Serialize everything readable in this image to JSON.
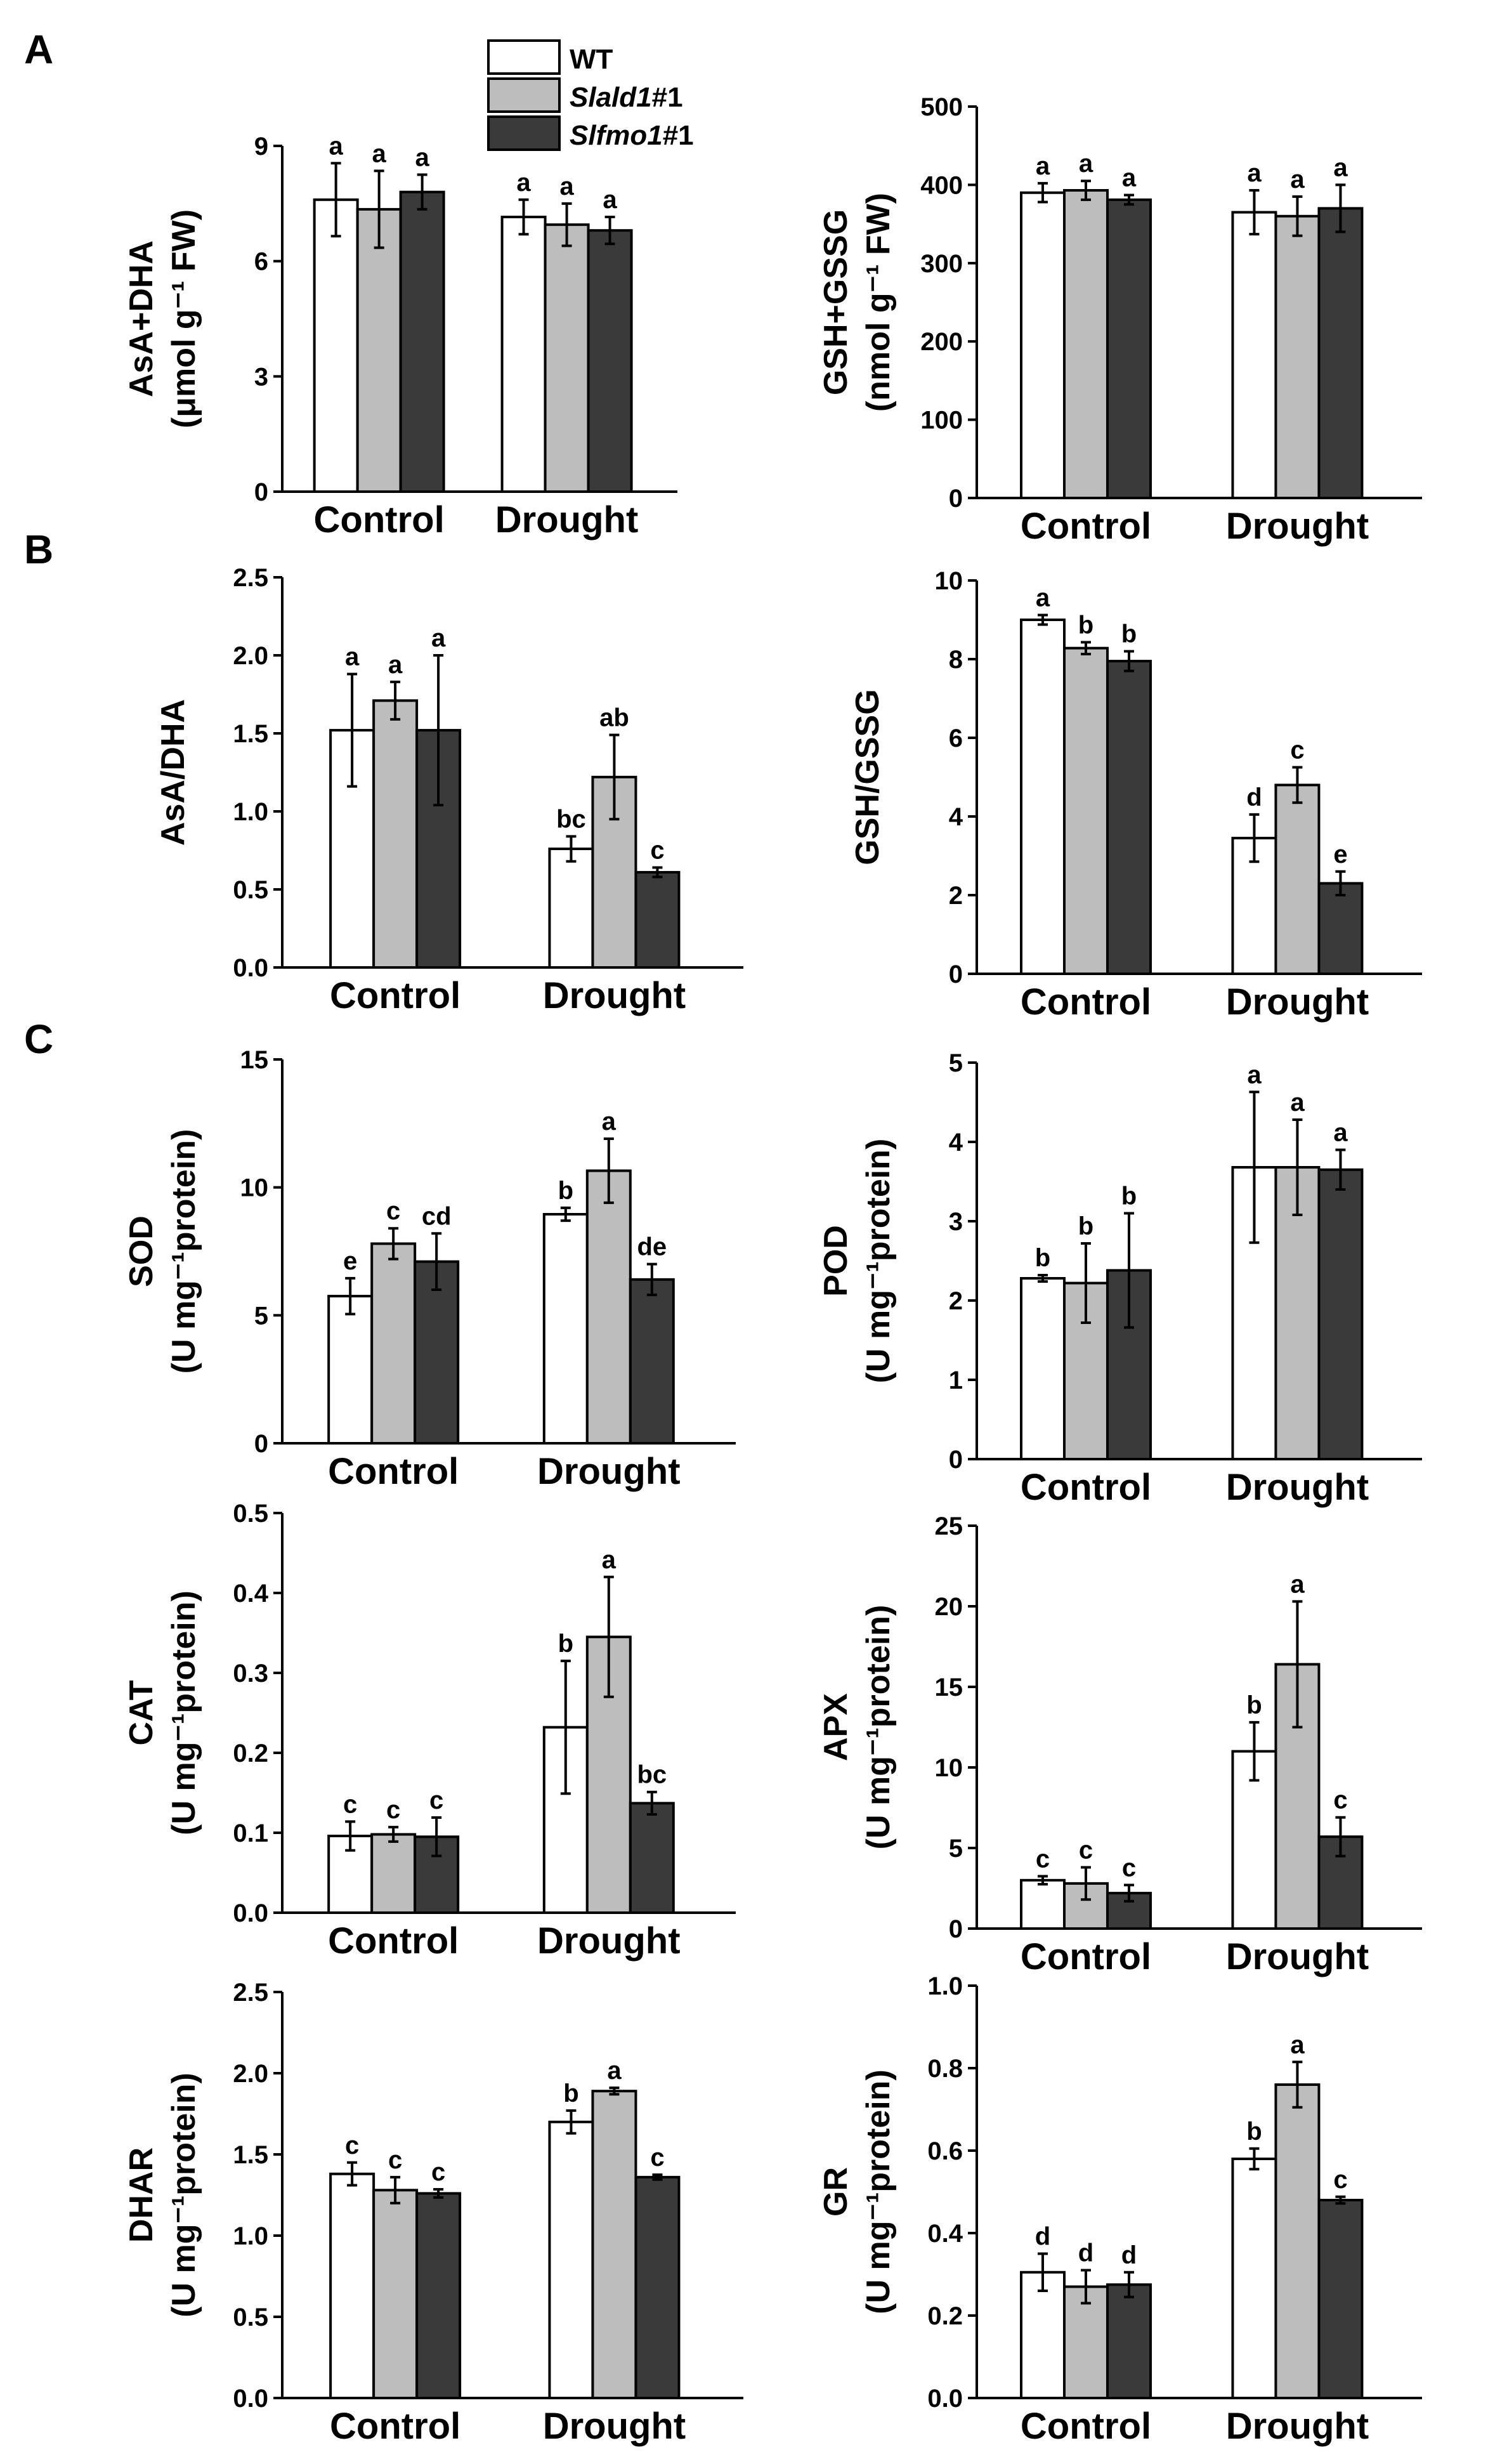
{
  "panel_labels": [
    "A",
    "B",
    "C"
  ],
  "legend": [
    {
      "label": "WT",
      "italic": "",
      "suffix": ""
    },
    {
      "label": "",
      "italic": "Slald1",
      "suffix": "#1"
    },
    {
      "label": "",
      "italic": "Slfmo1",
      "suffix": "#1"
    }
  ],
  "colors": {
    "WT": "#ffffff",
    "Slald1#1": "#bdbdbd",
    "Slfmo1#1": "#3a3a3a"
  },
  "chart_data": [
    {
      "id": "asa_dha_total",
      "type": "bar",
      "categories": [
        "Control",
        "Drought"
      ],
      "ylabel_line1": "AsA+DHA",
      "ylabel_line2": "(μmol g⁻¹ FW)",
      "ylim": [
        0,
        9
      ],
      "yticks": [
        "0",
        "3",
        "6",
        "9"
      ],
      "ytick_values": [
        0,
        3,
        6,
        9
      ],
      "series": [
        {
          "name": "WT",
          "values": [
            7.6,
            7.15
          ],
          "errors": [
            0.95,
            0.45
          ],
          "sig": [
            "a",
            "a"
          ]
        },
        {
          "name": "Slald1#1",
          "values": [
            7.35,
            6.95
          ],
          "errors": [
            1.0,
            0.55
          ],
          "sig": [
            "a",
            "a"
          ]
        },
        {
          "name": "Slfmo1#1",
          "values": [
            7.8,
            6.8
          ],
          "errors": [
            0.45,
            0.35
          ],
          "sig": [
            "a",
            "a"
          ]
        }
      ]
    },
    {
      "id": "gsh_gssg_total",
      "type": "bar",
      "categories": [
        "Control",
        "Drought"
      ],
      "ylabel_line1": "GSH+GSSG",
      "ylabel_line2": "(nmol g⁻¹ FW)",
      "ylim": [
        0,
        500
      ],
      "yticks": [
        "0",
        "100",
        "200",
        "300",
        "400",
        "500"
      ],
      "ytick_values": [
        0,
        100,
        200,
        300,
        400,
        500
      ],
      "series": [
        {
          "name": "WT",
          "values": [
            390,
            365
          ],
          "errors": [
            12,
            28
          ],
          "sig": [
            "a",
            "a"
          ]
        },
        {
          "name": "Slald1#1",
          "values": [
            393,
            360
          ],
          "errors": [
            12,
            25
          ],
          "sig": [
            "a",
            "a"
          ]
        },
        {
          "name": "Slfmo1#1",
          "values": [
            381,
            370
          ],
          "errors": [
            6,
            30
          ],
          "sig": [
            "a",
            "a"
          ]
        }
      ]
    },
    {
      "id": "asa_dha_ratio",
      "type": "bar",
      "categories": [
        "Control",
        "Drought"
      ],
      "ylabel_line1": "AsA/DHA",
      "ylabel_line2": "",
      "ylim": [
        0,
        2.5
      ],
      "yticks": [
        "0.0",
        "0.5",
        "1.0",
        "1.5",
        "2.0",
        "2.5"
      ],
      "ytick_values": [
        0,
        0.5,
        1.0,
        1.5,
        2.0,
        2.5
      ],
      "series": [
        {
          "name": "WT",
          "values": [
            1.52,
            0.76
          ],
          "errors": [
            0.36,
            0.08
          ],
          "sig": [
            "a",
            "bc"
          ]
        },
        {
          "name": "Slald1#1",
          "values": [
            1.71,
            1.22
          ],
          "errors": [
            0.12,
            0.27
          ],
          "sig": [
            "a",
            "ab"
          ]
        },
        {
          "name": "Slfmo1#1",
          "values": [
            1.52,
            0.61
          ],
          "errors": [
            0.48,
            0.03
          ],
          "sig": [
            "a",
            "c"
          ]
        }
      ]
    },
    {
      "id": "gsh_gssg_ratio",
      "type": "bar",
      "categories": [
        "Control",
        "Drought"
      ],
      "ylabel_line1": "GSH/GSSG",
      "ylabel_line2": "",
      "ylim": [
        0,
        10
      ],
      "yticks": [
        "0",
        "2",
        "4",
        "6",
        "8",
        "10"
      ],
      "ytick_values": [
        0,
        2,
        4,
        6,
        8,
        10
      ],
      "series": [
        {
          "name": "WT",
          "values": [
            9.0,
            3.45
          ],
          "errors": [
            0.12,
            0.6
          ],
          "sig": [
            "a",
            "d"
          ]
        },
        {
          "name": "Slald1#1",
          "values": [
            8.28,
            4.8
          ],
          "errors": [
            0.15,
            0.45
          ],
          "sig": [
            "b",
            "c"
          ]
        },
        {
          "name": "Slfmo1#1",
          "values": [
            7.95,
            2.3
          ],
          "errors": [
            0.25,
            0.3
          ],
          "sig": [
            "b",
            "e"
          ]
        }
      ]
    },
    {
      "id": "sod",
      "type": "bar",
      "categories": [
        "Control",
        "Drought"
      ],
      "ylabel_line1": "SOD",
      "ylabel_line2": "(U mg⁻¹protein)",
      "ylim": [
        0,
        15
      ],
      "yticks": [
        "0",
        "5",
        "10",
        "15"
      ],
      "ytick_values": [
        0,
        5,
        10,
        15
      ],
      "series": [
        {
          "name": "WT",
          "values": [
            5.75,
            8.95
          ],
          "errors": [
            0.7,
            0.25
          ],
          "sig": [
            "e",
            "b"
          ]
        },
        {
          "name": "Slald1#1",
          "values": [
            7.8,
            10.65
          ],
          "errors": [
            0.6,
            1.25
          ],
          "sig": [
            "c",
            "a"
          ]
        },
        {
          "name": "Slfmo1#1",
          "values": [
            7.1,
            6.4
          ],
          "errors": [
            1.1,
            0.6
          ],
          "sig": [
            "cd",
            "de"
          ]
        }
      ]
    },
    {
      "id": "pod",
      "type": "bar",
      "categories": [
        "Control",
        "Drought"
      ],
      "ylabel_line1": "POD",
      "ylabel_line2": "(U mg⁻¹protein)",
      "ylim": [
        0,
        5
      ],
      "yticks": [
        "0",
        "1",
        "2",
        "3",
        "4",
        "5"
      ],
      "ytick_values": [
        0,
        1,
        2,
        3,
        4,
        5
      ],
      "series": [
        {
          "name": "WT",
          "values": [
            2.28,
            3.68
          ],
          "errors": [
            0.04,
            0.95
          ],
          "sig": [
            "b",
            "a"
          ]
        },
        {
          "name": "Slald1#1",
          "values": [
            2.22,
            3.68
          ],
          "errors": [
            0.5,
            0.6
          ],
          "sig": [
            "b",
            "a"
          ]
        },
        {
          "name": "Slfmo1#1",
          "values": [
            2.38,
            3.65
          ],
          "errors": [
            0.72,
            0.25
          ],
          "sig": [
            "b",
            "a"
          ]
        }
      ]
    },
    {
      "id": "cat",
      "type": "bar",
      "categories": [
        "Control",
        "Drought"
      ],
      "ylabel_line1": "CAT",
      "ylabel_line2": "(U mg⁻¹protein)",
      "ylim": [
        0,
        0.5
      ],
      "yticks": [
        "0.0",
        "0.1",
        "0.2",
        "0.3",
        "0.4",
        "0.5"
      ],
      "ytick_values": [
        0,
        0.1,
        0.2,
        0.3,
        0.4,
        0.5
      ],
      "series": [
        {
          "name": "WT",
          "values": [
            0.096,
            0.232
          ],
          "errors": [
            0.018,
            0.083
          ],
          "sig": [
            "c",
            "b"
          ]
        },
        {
          "name": "Slald1#1",
          "values": [
            0.098,
            0.345
          ],
          "errors": [
            0.009,
            0.075
          ],
          "sig": [
            "c",
            "a"
          ]
        },
        {
          "name": "Slfmo1#1",
          "values": [
            0.095,
            0.137
          ],
          "errors": [
            0.024,
            0.014
          ],
          "sig": [
            "c",
            "bc"
          ]
        }
      ]
    },
    {
      "id": "apx",
      "type": "bar",
      "categories": [
        "Control",
        "Drought"
      ],
      "ylabel_line1": "APX",
      "ylabel_line2": "(U mg⁻¹protein)",
      "ylim": [
        0,
        25
      ],
      "yticks": [
        "0",
        "5",
        "10",
        "15",
        "20",
        "25"
      ],
      "ytick_values": [
        0,
        5,
        10,
        15,
        20,
        25
      ],
      "series": [
        {
          "name": "WT",
          "values": [
            3.0,
            11.0
          ],
          "errors": [
            0.25,
            1.8
          ],
          "sig": [
            "c",
            "b"
          ]
        },
        {
          "name": "Slald1#1",
          "values": [
            2.8,
            16.4
          ],
          "errors": [
            1.0,
            3.9
          ],
          "sig": [
            "c",
            "a"
          ]
        },
        {
          "name": "Slfmo1#1",
          "values": [
            2.2,
            5.7
          ],
          "errors": [
            0.5,
            1.2
          ],
          "sig": [
            "c",
            "c"
          ]
        }
      ]
    },
    {
      "id": "dhar",
      "type": "bar",
      "categories": [
        "Control",
        "Drought"
      ],
      "ylabel_line1": "DHAR",
      "ylabel_line2": "(U mg⁻¹protein)",
      "ylim": [
        0,
        2.5
      ],
      "yticks": [
        "0.0",
        "0.5",
        "1.0",
        "1.5",
        "2.0",
        "2.5"
      ],
      "ytick_values": [
        0,
        0.5,
        1.0,
        1.5,
        2.0,
        2.5
      ],
      "series": [
        {
          "name": "WT",
          "values": [
            1.38,
            1.7
          ],
          "errors": [
            0.07,
            0.07
          ],
          "sig": [
            "c",
            "b"
          ]
        },
        {
          "name": "Slald1#1",
          "values": [
            1.28,
            1.89
          ],
          "errors": [
            0.08,
            0.02
          ],
          "sig": [
            "c",
            "a"
          ]
        },
        {
          "name": "Slfmo1#1",
          "values": [
            1.26,
            1.36
          ],
          "errors": [
            0.025,
            0.015
          ],
          "sig": [
            "c",
            "c"
          ]
        }
      ]
    },
    {
      "id": "gr",
      "type": "bar",
      "categories": [
        "Control",
        "Drought"
      ],
      "ylabel_line1": "GR",
      "ylabel_line2": "(U mg⁻¹protein)",
      "ylim": [
        0,
        1.0
      ],
      "yticks": [
        "0.0",
        "0.2",
        "0.4",
        "0.6",
        "0.8",
        "1.0"
      ],
      "ytick_values": [
        0,
        0.2,
        0.4,
        0.6,
        0.8,
        1.0
      ],
      "series": [
        {
          "name": "WT",
          "values": [
            0.305,
            0.58
          ],
          "errors": [
            0.045,
            0.025
          ],
          "sig": [
            "d",
            "b"
          ]
        },
        {
          "name": "Slald1#1",
          "values": [
            0.27,
            0.76
          ],
          "errors": [
            0.04,
            0.055
          ],
          "sig": [
            "d",
            "a"
          ]
        },
        {
          "name": "Slfmo1#1",
          "values": [
            0.275,
            0.48
          ],
          "errors": [
            0.03,
            0.008
          ],
          "sig": [
            "d",
            "c"
          ]
        }
      ]
    }
  ]
}
